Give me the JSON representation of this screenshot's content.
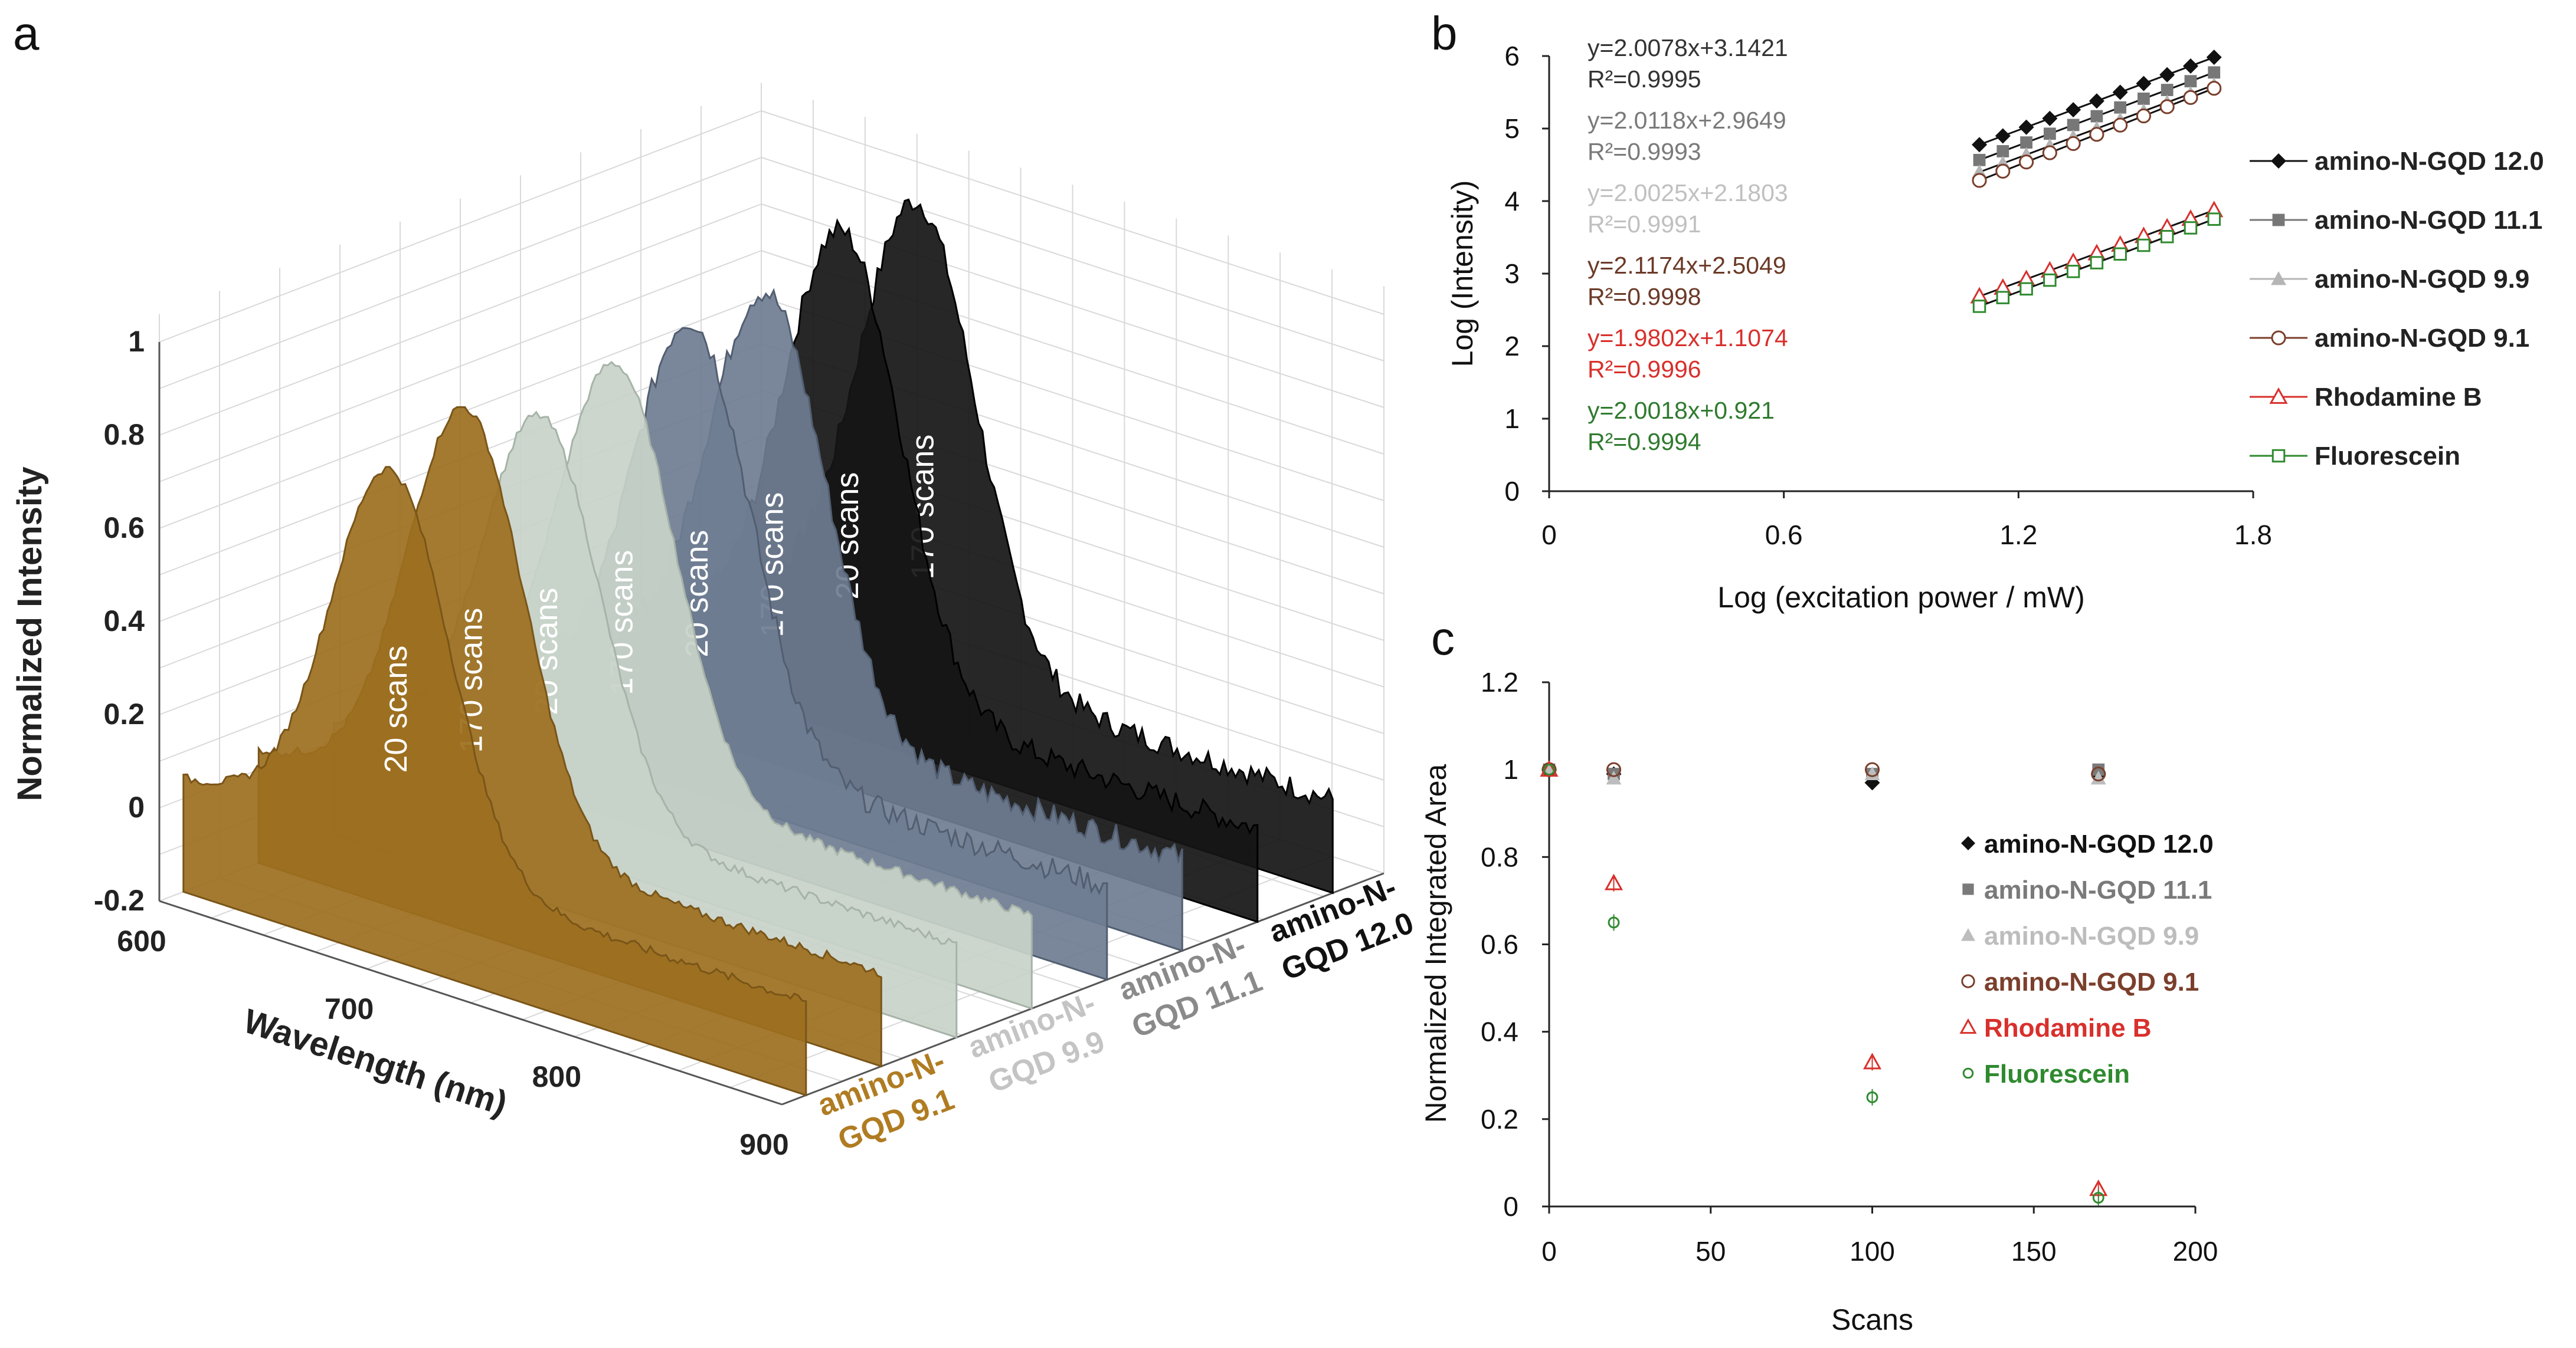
{
  "chart_data": [
    {
      "panel": "a",
      "type": "area",
      "title": "",
      "ylabel": "Normalized Intensity",
      "xlabel": "Wavelength (nm)",
      "y_ticks": [
        "1",
        "0.8",
        "0.6",
        "0.4",
        "0.2",
        "0",
        "-0.2"
      ],
      "x_ticks": [
        "600",
        "700",
        "800",
        "900"
      ],
      "ylim": [
        -0.2,
        1
      ],
      "xlim": [
        600,
        900
      ],
      "samples": [
        {
          "name_line1": "amino-N-",
          "name_line2": "GQD 9.1",
          "color": "#9c6f20",
          "traces": [
            {
              "label": "20 scans",
              "peak_nm": 700,
              "height": 0.81
            },
            {
              "label": "170 scans",
              "peak_nm": 700,
              "height": 0.88
            }
          ]
        },
        {
          "name_line1": "amino-N-",
          "name_line2": "GQD 9.9",
          "color": "#c8d3c9",
          "traces": [
            {
              "label": "20 scans",
              "peak_nm": 700,
              "height": 0.8
            },
            {
              "label": "170 scans",
              "peak_nm": 700,
              "height": 0.85
            }
          ]
        },
        {
          "name_line1": "amino-N-",
          "name_line2": "GQD 11.1",
          "color": "#6f7d92",
          "traces": [
            {
              "label": "20 scans",
              "peak_nm": 700,
              "height": 0.88
            },
            {
              "label": "170 scans",
              "peak_nm": 700,
              "height": 0.88
            }
          ]
        },
        {
          "name_line1": "amino-N-",
          "name_line2": "GQD 12.0",
          "color": "#151515",
          "traces": [
            {
              "label": "20 scans",
              "peak_nm": 700,
              "height": 0.95
            },
            {
              "label": "170 scans",
              "peak_nm": 700,
              "height": 0.95
            }
          ]
        }
      ]
    },
    {
      "panel": "b",
      "type": "scatter",
      "xlabel": "Log (excitation power / mW)",
      "ylabel": "Log (Intensity)",
      "xlim": [
        0,
        1.8
      ],
      "ylim": [
        0,
        6
      ],
      "x_ticks": [
        "0",
        "0.6",
        "1.2",
        "1.8"
      ],
      "y_ticks": [
        "0",
        "1",
        "2",
        "3",
        "4",
        "5",
        "6"
      ],
      "x": [
        1.1,
        1.16,
        1.22,
        1.28,
        1.34,
        1.4,
        1.46,
        1.52,
        1.58,
        1.64,
        1.7
      ],
      "series": [
        {
          "name": "amino-N-GQD 12.0",
          "color": "#111111",
          "marker": "diamond",
          "slope": 2.0078,
          "intercept": 3.1421,
          "equation": "y=2.0078x+3.1421",
          "r2": "R²=0.9995",
          "eq_color": "#333333"
        },
        {
          "name": "amino-N-GQD 11.1",
          "color": "#777777",
          "marker": "square",
          "slope": 2.0118,
          "intercept": 2.9649,
          "equation": "y=2.0118x+2.9649",
          "r2": "R²=0.9993",
          "eq_color": "#7a7a7a"
        },
        {
          "name": "amino-N-GQD 9.9",
          "color": "#b5b5b5",
          "marker": "triangle",
          "slope": 2.0025,
          "intercept": 2.1803,
          "equation": "y=2.0025x+2.1803",
          "r2": "R²=0.9991",
          "eq_color": "#c0c0c0"
        },
        {
          "name": "amino-N-GQD 9.1",
          "color": "#7b3f2c",
          "marker": "circle",
          "slope": 2.1174,
          "intercept": 2.5049,
          "equation": "y=2.1174x+2.5049",
          "r2": "R²=0.9998",
          "eq_color": "#6b3a27"
        },
        {
          "name": "Rhodamine B",
          "color": "#d8302c",
          "marker": "triangle-open",
          "slope": 1.9802,
          "intercept": 1.1074,
          "equation": "y=1.9802x+1.1074",
          "r2": "R²=0.9996",
          "eq_color": "#d8302c"
        },
        {
          "name": "Fluorescein",
          "color": "#2f8a2f",
          "marker": "square-open",
          "slope": 2.0018,
          "intercept": 0.921,
          "equation": "y=2.0018x+0.921",
          "r2": "R²=0.9994",
          "eq_color": "#2f7a2f"
        }
      ]
    },
    {
      "panel": "c",
      "type": "scatter",
      "xlabel": "Scans",
      "ylabel": "Normalized Integrated Area",
      "xlim": [
        0,
        200
      ],
      "ylim": [
        0,
        1.2
      ],
      "x_ticks": [
        "0",
        "50",
        "100",
        "150",
        "200"
      ],
      "y_ticks": [
        "0",
        "0.2",
        "0.4",
        "0.6",
        "0.8",
        "1",
        "1.2"
      ],
      "series": [
        {
          "name": "amino-N-GQD 12.0",
          "color": "#111111",
          "marker": "diamond",
          "x": [
            0,
            20,
            100,
            170
          ],
          "y": [
            1.0,
            0.99,
            0.97,
            0.99
          ]
        },
        {
          "name": "amino-N-GQD 11.1",
          "color": "#7a7a7a",
          "marker": "square",
          "x": [
            0,
            20,
            100,
            170
          ],
          "y": [
            1.0,
            0.99,
            0.99,
            1.0
          ]
        },
        {
          "name": "amino-N-GQD 9.9",
          "color": "#bdbdbd",
          "marker": "triangle",
          "x": [
            0,
            20,
            100,
            170
          ],
          "y": [
            1.0,
            0.98,
            0.99,
            0.98
          ]
        },
        {
          "name": "amino-N-GQD 9.1",
          "color": "#7b3f2c",
          "marker": "circle",
          "x": [
            0,
            20,
            100,
            170
          ],
          "y": [
            1.0,
            1.0,
            1.0,
            0.99
          ]
        },
        {
          "name": "Rhodamine B",
          "color": "#d8302c",
          "marker": "triangle-open",
          "x": [
            0,
            20,
            100,
            170
          ],
          "y": [
            1.0,
            0.74,
            0.33,
            0.04
          ]
        },
        {
          "name": "Fluorescein",
          "color": "#2f8a2f",
          "marker": "circle-open",
          "x": [
            0,
            20,
            100,
            170
          ],
          "y": [
            1.0,
            0.65,
            0.25,
            0.02
          ]
        }
      ]
    }
  ],
  "panels": {
    "a": "a",
    "b": "b",
    "c": "c"
  }
}
